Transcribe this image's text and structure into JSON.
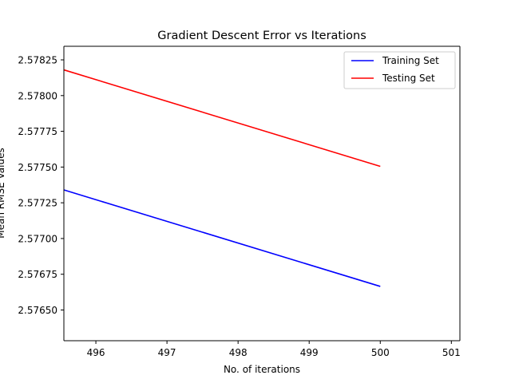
{
  "chart_data": {
    "type": "line",
    "title": "Gradient Descent Error vs Iterations",
    "xlabel": "No. of iterations",
    "ylabel": "Mean RMSE Values",
    "xlim": [
      495.55,
      501.12
    ],
    "ylim": [
      2.576285,
      2.578345
    ],
    "x_ticks": [
      496,
      497,
      498,
      499,
      500,
      501
    ],
    "y_ticks": [
      2.5765,
      2.57675,
      2.577,
      2.57725,
      2.5775,
      2.57775,
      2.578,
      2.57825
    ],
    "x_tick_labels": [
      "496",
      "497",
      "498",
      "499",
      "500",
      "501"
    ],
    "y_tick_labels": [
      "2.57650",
      "2.57675",
      "2.57700",
      "2.57725",
      "2.57750",
      "2.57775",
      "2.57800",
      "2.57825"
    ],
    "grid": false,
    "legend_position": "top-right",
    "series": [
      {
        "name": "Training Set",
        "color": "#0000ff",
        "x": [
          495.55,
          500
        ],
        "y": [
          2.57734,
          2.576665
        ]
      },
      {
        "name": "Testing Set",
        "color": "#ff0000",
        "x": [
          495.55,
          500
        ],
        "y": [
          2.57818,
          2.577505
        ]
      }
    ]
  }
}
